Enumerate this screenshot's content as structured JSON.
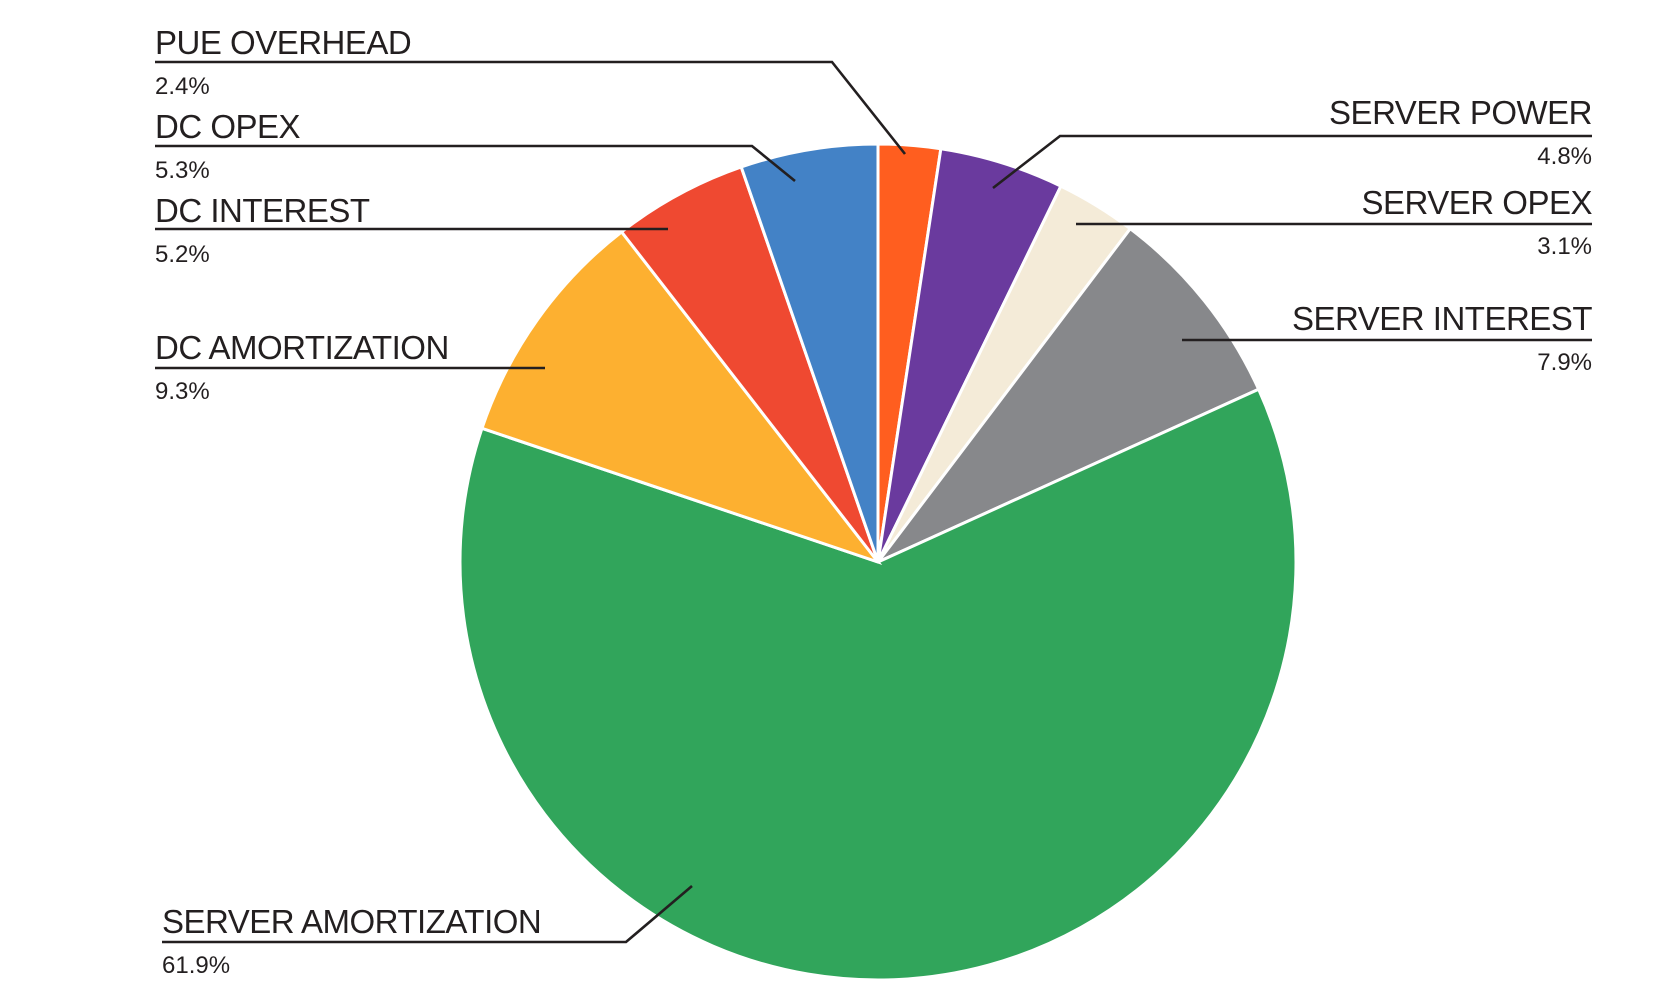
{
  "chart_data": {
    "type": "pie",
    "title": "",
    "start_angle_deg": 0,
    "direction": "clockwise",
    "slices": [
      {
        "label": "PUE OVERHEAD",
        "percent_text": "2.4%",
        "value": 2.4,
        "color": "#FF5E1F"
      },
      {
        "label": "SERVER POWER",
        "percent_text": "4.8%",
        "value": 4.8,
        "color": "#6A3A9E"
      },
      {
        "label": "SERVER OPEX",
        "percent_text": "3.1%",
        "value": 3.1,
        "color": "#F4EBD8"
      },
      {
        "label": "SERVER INTEREST",
        "percent_text": "7.9%",
        "value": 7.9,
        "color": "#87888B"
      },
      {
        "label": "SERVER AMORTIZATION",
        "percent_text": "61.9%",
        "value": 61.9,
        "color": "#31A55B"
      },
      {
        "label": "DC AMORTIZATION",
        "percent_text": "9.3%",
        "value": 9.3,
        "color": "#FDB030"
      },
      {
        "label": "DC INTEREST",
        "percent_text": "5.2%",
        "value": 5.2,
        "color": "#EF4931"
      },
      {
        "label": "DC OPEX",
        "percent_text": "5.3%",
        "value": 5.3,
        "color": "#4382C6"
      }
    ]
  }
}
